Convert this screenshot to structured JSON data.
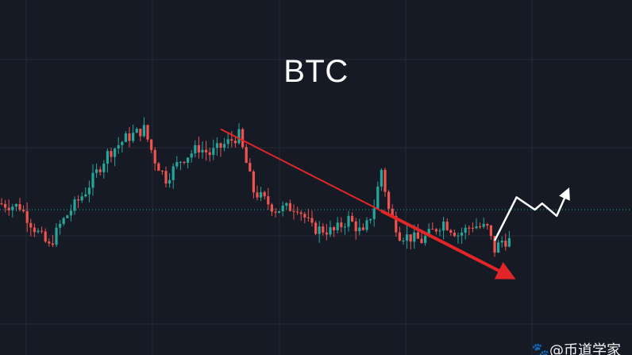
{
  "chart_data": {
    "type": "candlestick",
    "title": "BTC",
    "xlabel": "",
    "ylabel": "",
    "grid": true,
    "price_range": [
      0,
      100
    ],
    "candle_count": 140,
    "price_path": [
      [
        0,
        42
      ],
      [
        6,
        41
      ],
      [
        10,
        34
      ],
      [
        14,
        28
      ],
      [
        17,
        35
      ],
      [
        20,
        40
      ],
      [
        24,
        46
      ],
      [
        30,
        58
      ],
      [
        35,
        63
      ],
      [
        40,
        66
      ],
      [
        43,
        56
      ],
      [
        46,
        50
      ],
      [
        50,
        56
      ],
      [
        55,
        60
      ],
      [
        58,
        58
      ],
      [
        62,
        61
      ],
      [
        66,
        64
      ],
      [
        70,
        46
      ],
      [
        76,
        40
      ],
      [
        82,
        41
      ],
      [
        86,
        34
      ],
      [
        92,
        33
      ],
      [
        96,
        37
      ],
      [
        100,
        32
      ],
      [
        103,
        41
      ],
      [
        105,
        53
      ],
      [
        107,
        40
      ],
      [
        110,
        32
      ],
      [
        116,
        30
      ],
      [
        122,
        36
      ],
      [
        126,
        32
      ],
      [
        130,
        35
      ],
      [
        134,
        34
      ],
      [
        136,
        27
      ],
      [
        138,
        30
      ]
    ],
    "colors": {
      "up": "#26a69a",
      "down": "#ef5350",
      "trendline": "#e02626",
      "projection": "#ffffff",
      "background": "#161a25",
      "grid": "#242a37",
      "price_line": "#26a69a"
    },
    "last_price_level": 40,
    "trendline": {
      "from": [
        60,
        66
      ],
      "to": [
        140,
        18
      ]
    },
    "projection_arrow": [
      [
        135,
        30
      ],
      [
        141,
        44
      ],
      [
        146,
        40
      ],
      [
        148,
        42
      ],
      [
        152,
        38
      ],
      [
        155,
        46
      ]
    ]
  },
  "watermark": {
    "text": "@币道学家",
    "icon": "paw-icon"
  }
}
